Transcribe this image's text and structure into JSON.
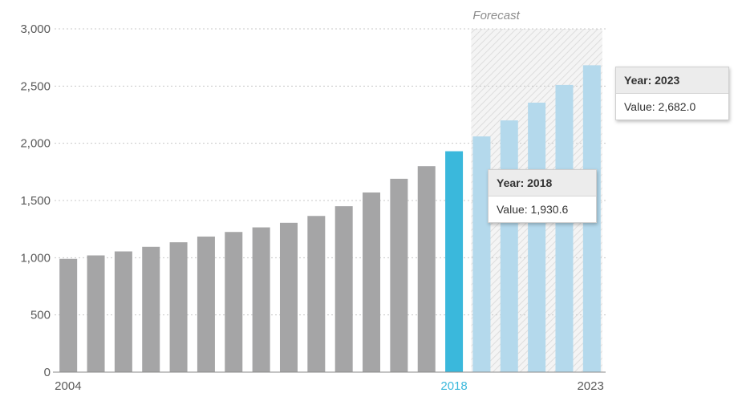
{
  "chart_data": {
    "type": "bar",
    "title": "",
    "xlabel": "",
    "ylabel": "",
    "ylim": [
      0,
      3000
    ],
    "yticks": [
      0,
      500,
      1000,
      1500,
      2000,
      2500,
      3000
    ],
    "ytick_labels": [
      "0",
      "500",
      "1,000",
      "1,500",
      "2,000",
      "2,500",
      "3,000"
    ],
    "grid": "horizontal dotted",
    "categories": [
      2004,
      2005,
      2006,
      2007,
      2008,
      2009,
      2010,
      2011,
      2012,
      2013,
      2014,
      2015,
      2016,
      2017,
      2018,
      2019,
      2020,
      2021,
      2022,
      2023
    ],
    "values": [
      990,
      1020,
      1055,
      1095,
      1135,
      1185,
      1225,
      1265,
      1305,
      1365,
      1450,
      1570,
      1690,
      1800,
      1930.6,
      2060,
      2200,
      2355,
      2510,
      2682.0
    ],
    "xtick_labels": [
      {
        "year": 2004,
        "label": "2004"
      },
      {
        "year": 2018,
        "label": "2018"
      },
      {
        "year": 2023,
        "label": "2023"
      }
    ],
    "forecast": {
      "label": "Forecast",
      "from": 2019,
      "to": 2023
    },
    "colors": {
      "historical": "#a5a5a6",
      "highlight": "#3ab8dc",
      "forecast": "#b4d9ec",
      "axis_text": "#595959",
      "highlight_text": "#3ab8dc"
    },
    "highlight_year": 2018,
    "tooltips": [
      {
        "year": 2023,
        "header": "Year: 2023",
        "body": "Value: 2,682.0"
      },
      {
        "year": 2018,
        "header": "Year: 2018",
        "body": "Value: 1,930.6"
      }
    ]
  }
}
